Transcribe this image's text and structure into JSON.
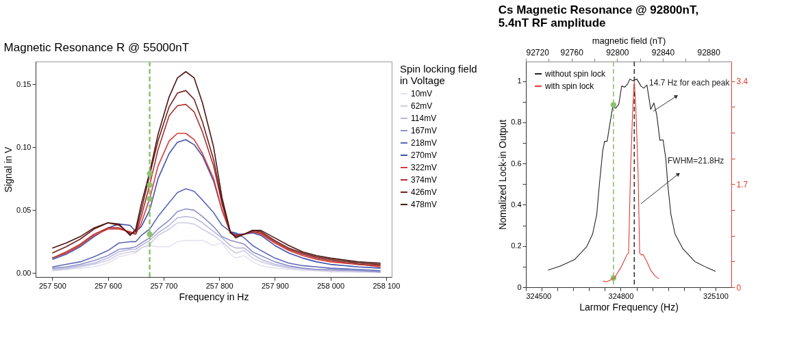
{
  "chart_data": [
    {
      "type": "line",
      "title": "Magnetic Resonance R @ 55000nT",
      "xlabel": "Frequency in Hz",
      "ylabel": "Signal in V",
      "legend_title": "Spin locking field in Voltage",
      "legend": "right",
      "grid": false,
      "marker": "none",
      "x": [
        257500,
        257525,
        257550,
        257575,
        257600,
        257620,
        257640,
        257650,
        257660,
        257675,
        257690,
        257710,
        257725,
        257740,
        257755,
        257770,
        257790,
        257805,
        257820,
        257830,
        257845,
        257860,
        257875,
        257900,
        257925,
        257950,
        257975,
        258000,
        258050,
        258090
      ],
      "xlim": [
        257470,
        258110
      ],
      "ylim": [
        -0.003,
        0.168
      ],
      "xticks": [
        {
          "value": 257500,
          "label": "257 500"
        },
        {
          "value": 257600,
          "label": "257 600"
        },
        {
          "value": 257700,
          "label": "257 700"
        },
        {
          "value": 257800,
          "label": "257 800"
        },
        {
          "value": 257900,
          "label": "257 900"
        },
        {
          "value": 258000,
          "label": "258 000"
        },
        {
          "value": 258100,
          "label": "258 100"
        }
      ],
      "yticks": [
        {
          "value": 0,
          "label": "0.00"
        },
        0.05,
        {
          "value": 0.1,
          "label": "0.10"
        },
        0.15
      ],
      "series": [
        {
          "name": "10mV",
          "color": "#e4e2f0",
          "values": [
            0.002,
            0.003,
            0.004,
            0.005,
            0.008,
            0.013,
            0.015,
            0.016,
            0.02,
            0.022,
            0.021,
            0.021,
            0.025,
            0.026,
            0.026,
            0.026,
            0.022,
            0.024,
            0.015,
            0.012,
            0.014,
            0.009,
            0.006,
            0.004,
            0.003,
            0.002,
            0.002,
            0.001,
            0.001,
            0.001
          ]
        },
        {
          "name": "62mV",
          "color": "#cfcde6",
          "values": [
            0.002,
            0.003,
            0.005,
            0.007,
            0.01,
            0.015,
            0.017,
            0.017,
            0.02,
            0.023,
            0.03,
            0.035,
            0.04,
            0.04,
            0.039,
            0.035,
            0.03,
            0.025,
            0.019,
            0.016,
            0.018,
            0.012,
            0.009,
            0.006,
            0.004,
            0.003,
            0.002,
            0.002,
            0.001,
            0.001
          ]
        },
        {
          "name": "114mV",
          "color": "#b8b6dc",
          "values": [
            0.003,
            0.004,
            0.006,
            0.008,
            0.012,
            0.017,
            0.019,
            0.019,
            0.022,
            0.026,
            0.032,
            0.038,
            0.044,
            0.045,
            0.044,
            0.04,
            0.033,
            0.028,
            0.022,
            0.02,
            0.02,
            0.015,
            0.011,
            0.007,
            0.005,
            0.004,
            0.003,
            0.002,
            0.002,
            0.001
          ]
        },
        {
          "name": "167mV",
          "color": "#8d8fc9",
          "values": [
            0.004,
            0.005,
            0.007,
            0.01,
            0.014,
            0.019,
            0.02,
            0.021,
            0.024,
            0.028,
            0.035,
            0.042,
            0.049,
            0.051,
            0.05,
            0.045,
            0.037,
            0.029,
            0.026,
            0.025,
            0.023,
            0.017,
            0.014,
            0.009,
            0.006,
            0.004,
            0.003,
            0.003,
            0.002,
            0.001
          ]
        },
        {
          "name": "218mV",
          "color": "#5b66b5",
          "values": [
            0.005,
            0.007,
            0.009,
            0.013,
            0.018,
            0.024,
            0.025,
            0.025,
            0.03,
            0.035,
            0.045,
            0.056,
            0.064,
            0.067,
            0.065,
            0.058,
            0.048,
            0.038,
            0.033,
            0.032,
            0.028,
            0.022,
            0.018,
            0.012,
            0.008,
            0.006,
            0.005,
            0.004,
            0.003,
            0.002
          ]
        },
        {
          "name": "270mV",
          "color": "#3f4fa8",
          "values": [
            0.011,
            0.015,
            0.021,
            0.029,
            0.036,
            0.039,
            0.038,
            0.033,
            0.037,
            0.05,
            0.075,
            0.095,
            0.104,
            0.106,
            0.102,
            0.093,
            0.073,
            0.05,
            0.033,
            0.031,
            0.031,
            0.032,
            0.03,
            0.022,
            0.016,
            0.012,
            0.009,
            0.007,
            0.005,
            0.004
          ]
        },
        {
          "name": "322mV",
          "color": "#d93a3a",
          "values": [
            0.012,
            0.016,
            0.022,
            0.03,
            0.035,
            0.035,
            0.033,
            0.031,
            0.04,
            0.059,
            0.085,
            0.105,
            0.111,
            0.111,
            0.106,
            0.095,
            0.075,
            0.05,
            0.032,
            0.03,
            0.031,
            0.033,
            0.031,
            0.024,
            0.018,
            0.014,
            0.011,
            0.009,
            0.007,
            0.005
          ]
        },
        {
          "name": "374mV",
          "color": "#a8322f",
          "values": [
            0.012,
            0.017,
            0.023,
            0.031,
            0.036,
            0.036,
            0.032,
            0.031,
            0.045,
            0.07,
            0.098,
            0.125,
            0.133,
            0.134,
            0.128,
            0.112,
            0.085,
            0.055,
            0.032,
            0.03,
            0.031,
            0.033,
            0.032,
            0.025,
            0.019,
            0.015,
            0.012,
            0.01,
            0.007,
            0.006
          ]
        },
        {
          "name": "426mV",
          "color": "#72201e",
          "values": [
            0.016,
            0.021,
            0.027,
            0.035,
            0.04,
            0.038,
            0.031,
            0.033,
            0.05,
            0.078,
            0.105,
            0.132,
            0.143,
            0.145,
            0.138,
            0.12,
            0.09,
            0.057,
            0.032,
            0.029,
            0.031,
            0.034,
            0.033,
            0.026,
            0.02,
            0.016,
            0.013,
            0.011,
            0.008,
            0.007
          ]
        },
        {
          "name": "478mV",
          "color": "#4a1512",
          "values": [
            0.02,
            0.024,
            0.029,
            0.036,
            0.04,
            0.039,
            0.03,
            0.035,
            0.055,
            0.08,
            0.11,
            0.14,
            0.155,
            0.16,
            0.155,
            0.135,
            0.1,
            0.06,
            0.033,
            0.028,
            0.031,
            0.034,
            0.034,
            0.028,
            0.022,
            0.017,
            0.014,
            0.012,
            0.009,
            0.008
          ]
        },
        {
          "type": "scatter",
          "marker": "circle",
          "color": "#8fc06f",
          "x": [
            257675,
            257675,
            257675,
            257675
          ],
          "values": [
            0.079,
            0.07,
            0.059,
            0.031
          ]
        }
      ],
      "ref_lines": [
        {
          "axis": "x",
          "value": 257675,
          "color": "#8fc06f",
          "line_style": "dashed"
        }
      ]
    },
    {
      "type": "line",
      "title": "Cs Magnetic Resonance @ 92800nT, 5.4nT RF amplitude",
      "xlabel": "Larmor Frequency (Hz)",
      "ylabel": "Nomalized Lock-in Output",
      "x2label": "magnetic field (nT)",
      "legend": "top left",
      "grid": false,
      "marker": "none",
      "xlim": [
        324500,
        325150
      ],
      "ylim": [
        0,
        1.095
      ],
      "x2lim": [
        92720,
        92900
      ],
      "y2lim": [
        0,
        3.723
      ],
      "xticks": [
        324500,
        {
          "value": 324550,
          "label": null
        },
        {
          "value": 324600,
          "label": null
        },
        {
          "value": 324650,
          "label": null
        },
        {
          "value": 324700,
          "label": null
        },
        {
          "value": 324750,
          "label": null
        },
        324800,
        {
          "value": 324850,
          "label": null
        },
        {
          "value": 324900,
          "label": null
        },
        {
          "value": 324950,
          "label": null
        },
        {
          "value": 325000,
          "label": null
        },
        {
          "value": 325050,
          "label": null
        },
        325100
      ],
      "x2ticks": [
        92720,
        {
          "value": 92740,
          "label": null
        },
        92760,
        {
          "value": 92780,
          "label": null
        },
        92800,
        {
          "value": 92820,
          "label": null
        },
        92840,
        {
          "value": 92860,
          "label": null
        },
        92880
      ],
      "yticks": [
        0,
        {
          "value": 0.1,
          "label": null
        },
        0.2,
        {
          "value": 0.3,
          "label": null
        },
        0.4,
        {
          "value": 0.5,
          "label": null
        },
        0.6,
        {
          "value": 0.7,
          "label": null
        },
        0.8,
        {
          "value": 0.9,
          "label": null
        },
        1
      ],
      "y2ticks": [
        0,
        {
          "value": 0.425,
          "label": null
        },
        {
          "value": 0.85,
          "label": null
        },
        {
          "value": 1.275,
          "label": null
        },
        1.7,
        {
          "value": 2.125,
          "label": null
        },
        {
          "value": 2.55,
          "label": null
        },
        {
          "value": 2.975,
          "label": null
        },
        3.4
      ],
      "series": [
        {
          "name": "without spin lock",
          "color": "#222222",
          "x": [
            324570,
            324609,
            324654,
            324692,
            324711,
            324724,
            324733,
            324743,
            324749,
            324757,
            324765,
            324775,
            324784,
            324794,
            324803,
            324813,
            324822,
            324829,
            324838,
            324851,
            324864,
            324873,
            324883,
            324895,
            324905,
            324914,
            324924,
            324934,
            324943,
            324949,
            324959,
            324972,
            324997,
            325035,
            325073,
            325100
          ],
          "values": [
            0.083,
            0.103,
            0.134,
            0.196,
            0.258,
            0.351,
            0.506,
            0.661,
            0.708,
            0.708,
            0.785,
            0.878,
            0.868,
            0.888,
            0.976,
            0.971,
            0.987,
            1.01,
            1.002,
            1.01,
            0.976,
            0.966,
            0.981,
            0.863,
            0.894,
            0.837,
            0.713,
            0.715,
            0.62,
            0.496,
            0.351,
            0.258,
            0.186,
            0.124,
            0.095,
            0.077
          ]
        },
        {
          "name": "with spin lock",
          "color": "#e03c31",
          "axis": "y2",
          "x": [
            324744,
            324756,
            324768,
            324781,
            324800,
            324813,
            324820,
            324825,
            324831,
            324838,
            324843,
            324848,
            324855,
            324860,
            324867,
            324871,
            324883,
            324895,
            324908,
            324921
          ],
          "values": [
            0.1,
            0.09,
            0.12,
            0.16,
            0.32,
            0.46,
            0.54,
            0.56,
            1.9,
            2.95,
            3.39,
            2.95,
            1.9,
            0.56,
            0.53,
            0.54,
            0.42,
            0.28,
            0.19,
            0.14
          ]
        },
        {
          "type": "scatter",
          "marker": "circle",
          "color": "#8fc06f",
          "x": [
            324777,
            324777
          ],
          "values": [
            0.885,
            0.045
          ]
        }
      ],
      "ref_lines": [
        {
          "axis": "x",
          "value": 324777,
          "color": "#8fc06f",
          "line_style": "dashed"
        },
        {
          "axis": "x",
          "value": 324843,
          "color": "#333333",
          "line_style": "dashed"
        }
      ],
      "annotations": [
        "14.7 Hz for each peak",
        "FWHM=21.8Hz"
      ]
    }
  ]
}
